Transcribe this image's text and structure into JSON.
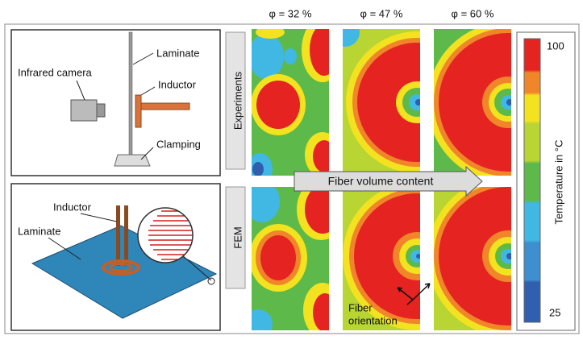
{
  "header": {
    "columns": [
      "φ = 32 %",
      "φ = 47 %",
      "φ = 60 %"
    ]
  },
  "setup_experiment": {
    "camera": "Infrared camera",
    "laminate": "Laminate",
    "inductor": "Inductor",
    "clamping": "Clamping"
  },
  "setup_fem": {
    "inductor": "Inductor",
    "laminate": "Laminate"
  },
  "rows": [
    "Experiments",
    "FEM"
  ],
  "arrow": "Fiber volume content",
  "annotation": [
    "Fiber",
    "orientation"
  ],
  "colorbar": {
    "max": "100",
    "min": "25",
    "label": "Temperature in °C"
  }
}
